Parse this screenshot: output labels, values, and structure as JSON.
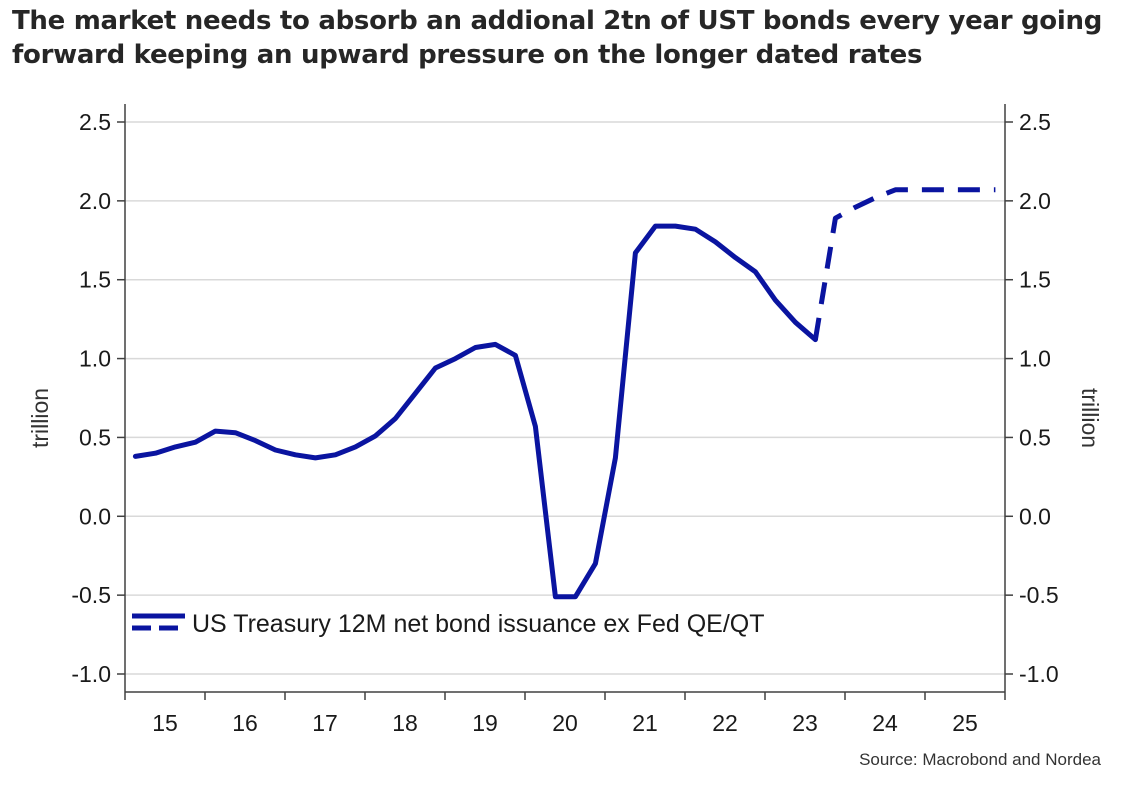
{
  "headline": "The market needs to absorb an addional 2tn of UST bonds every year going forward keeping an upward pressure on the longer dated rates",
  "source": "Source: Macrobond and Nordea",
  "colors": {
    "series": "#0a14a0",
    "grid": "#d9d9d9",
    "axis": "#404040"
  },
  "chart_data": {
    "type": "line",
    "title": "",
    "xlabel": "",
    "ylabel": "trillion",
    "ylabel_right": "trillion",
    "ylim": [
      -1.0,
      2.5
    ],
    "yticks": [
      "-1.0",
      "-0.5",
      "0.0",
      "0.5",
      "1.0",
      "1.5",
      "2.0",
      "2.5"
    ],
    "ytick_values": [
      -1.0,
      -0.5,
      0.0,
      0.5,
      1.0,
      1.5,
      2.0,
      2.5
    ],
    "xlim": [
      2014.5,
      2025.5
    ],
    "xticks": [
      "15",
      "16",
      "17",
      "18",
      "19",
      "20",
      "21",
      "22",
      "23",
      "24",
      "25"
    ],
    "xtick_values": [
      2015,
      2016,
      2017,
      2018,
      2019,
      2020,
      2021,
      2022,
      2023,
      2024,
      2025
    ],
    "grid": true,
    "legend_position": "bottom-left",
    "series": [
      {
        "name": "US Treasury 12M net bond issuance ex Fed QE/QT",
        "style": "solid",
        "x": [
          2014.63,
          2014.88,
          2015.13,
          2015.38,
          2015.63,
          2015.88,
          2016.13,
          2016.38,
          2016.63,
          2016.88,
          2017.13,
          2017.38,
          2017.63,
          2017.88,
          2018.13,
          2018.38,
          2018.63,
          2018.88,
          2019.13,
          2019.38,
          2019.63,
          2019.88,
          2020.13,
          2020.38,
          2020.63,
          2020.88,
          2021.13,
          2021.38,
          2021.63,
          2021.88,
          2022.13,
          2022.38,
          2022.63,
          2022.88,
          2023.13
        ],
        "values": [
          0.38,
          0.4,
          0.44,
          0.47,
          0.54,
          0.53,
          0.48,
          0.42,
          0.39,
          0.37,
          0.39,
          0.44,
          0.51,
          0.62,
          0.78,
          0.94,
          1.0,
          1.07,
          1.09,
          1.02,
          0.57,
          -0.51,
          -0.51,
          -0.3,
          0.37,
          1.67,
          1.84,
          1.84,
          1.82,
          1.74,
          1.64,
          1.55,
          1.37,
          1.23,
          1.12
        ]
      },
      {
        "name": "US Treasury 12M net bond issuance ex Fed QE/QT",
        "style": "dashed",
        "x": [
          2023.13,
          2023.38,
          2023.63,
          2023.88,
          2024.13,
          2024.38,
          2024.63,
          2024.88,
          2025.13,
          2025.38
        ],
        "values": [
          1.12,
          1.89,
          1.96,
          2.02,
          2.07,
          2.07,
          2.07,
          2.07,
          2.07,
          2.07
        ]
      }
    ]
  }
}
